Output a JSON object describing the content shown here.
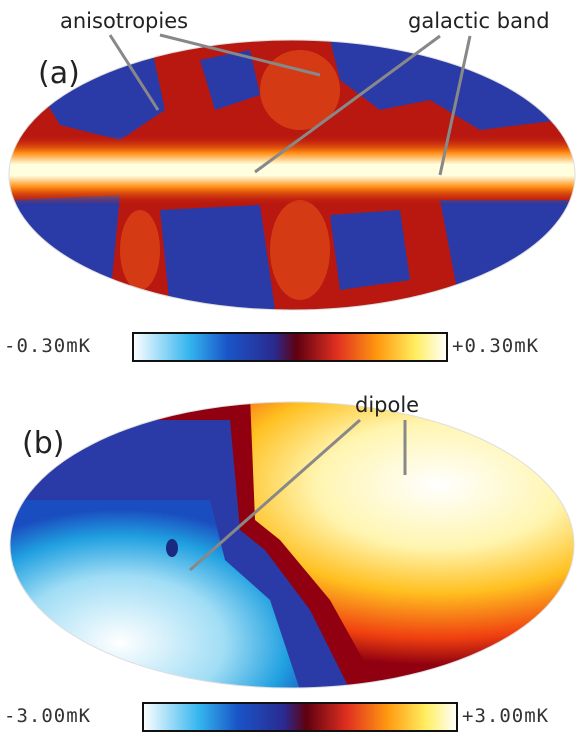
{
  "panels": [
    {
      "label": "(a)",
      "annotations": [
        "anisotropies",
        "galactic band"
      ],
      "colorbar": {
        "min_label": "-0.30mK",
        "max_label": "+0.30mK"
      }
    },
    {
      "label": "(b)",
      "annotations": [
        "dipole"
      ],
      "colorbar": {
        "min_label": "-3.00mK",
        "max_label": "+3.00mK"
      }
    }
  ]
}
